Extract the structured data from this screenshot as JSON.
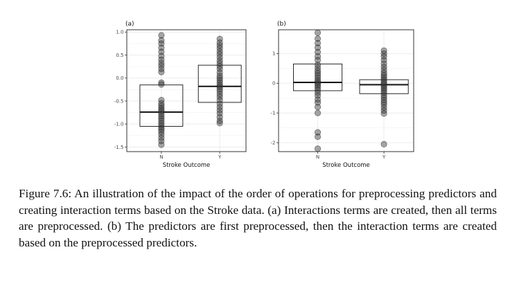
{
  "chart_data": [
    {
      "type": "box",
      "panel_label": "(a)",
      "xlabel": "Stroke Outcome",
      "ylabel": "",
      "categories": [
        "N",
        "Y"
      ],
      "ylim": [
        -1.6,
        1.05
      ],
      "yticks": [
        1.0,
        0.5,
        0.0,
        -0.5,
        -1.0,
        -1.5
      ],
      "ytick_labels": [
        "1.0",
        "0.5",
        "0.0",
        "-0.5",
        "-1.0",
        "-1.5"
      ],
      "grid": true,
      "boxes": [
        {
          "category": "N",
          "q1": -1.05,
          "median": -0.74,
          "q3": -0.15
        },
        {
          "category": "Y",
          "q1": -0.53,
          "median": -0.18,
          "q3": 0.28
        }
      ],
      "points": {
        "N": [
          0.93,
          0.82,
          0.75,
          0.66,
          0.57,
          0.48,
          0.4,
          0.33,
          0.27,
          0.2,
          0.13,
          -0.1,
          -0.14,
          -0.48,
          -0.55,
          -0.6,
          -0.65,
          -0.69,
          -0.73,
          -0.78,
          -0.83,
          -0.88,
          -0.93,
          -0.98,
          -1.03,
          -1.08,
          -1.12,
          -1.17,
          -1.23,
          -1.3,
          -1.37,
          -1.45
        ],
        "Y": [
          0.85,
          0.77,
          0.71,
          0.65,
          0.58,
          0.52,
          0.45,
          0.38,
          0.32,
          0.26,
          0.2,
          0.12,
          0.05,
          0.0,
          -0.05,
          -0.1,
          -0.15,
          -0.19,
          -0.24,
          -0.29,
          -0.35,
          -0.41,
          -0.48,
          -0.56,
          -0.63,
          -0.7,
          -0.77,
          -0.85,
          -0.93,
          -0.98
        ]
      }
    },
    {
      "type": "box",
      "panel_label": "(b)",
      "xlabel": "Stroke Outcome",
      "ylabel": "",
      "categories": [
        "N",
        "Y"
      ],
      "ylim": [
        -2.3,
        1.8
      ],
      "yticks": [
        1,
        0,
        -1,
        -2
      ],
      "ytick_labels": [
        "1",
        "0",
        "-1",
        "-2"
      ],
      "grid": true,
      "boxes": [
        {
          "category": "N",
          "q1": -0.25,
          "median": 0.03,
          "q3": 0.65
        },
        {
          "category": "Y",
          "q1": -0.35,
          "median": -0.05,
          "q3": 0.12
        }
      ],
      "points": {
        "N": [
          1.7,
          1.5,
          1.35,
          1.2,
          1.05,
          0.9,
          0.78,
          0.62,
          0.52,
          0.42,
          0.34,
          0.26,
          0.18,
          0.1,
          0.04,
          -0.02,
          -0.08,
          -0.15,
          -0.23,
          -0.32,
          -0.42,
          -0.55,
          -0.65,
          -0.8,
          -1.0,
          -1.65,
          -1.8,
          -2.2
        ],
        "Y": [
          1.1,
          1.0,
          0.9,
          0.78,
          0.66,
          0.55,
          0.45,
          0.35,
          0.27,
          0.2,
          0.13,
          0.06,
          0.0,
          -0.06,
          -0.12,
          -0.18,
          -0.25,
          -0.32,
          -0.4,
          -0.48,
          -0.56,
          -0.64,
          -0.72,
          -0.82,
          -0.92,
          -1.02,
          -2.05
        ]
      }
    }
  ],
  "caption": {
    "text": "Figure 7.6: An illustration of the impact of the order of operations for preprocessing predictors and creating interaction terms based on the Stroke data. (a) Interactions terms are created, then all terms are preprocessed. (b) The predictors are first preprocessed, then the interaction terms are created based on the preprocessed predictors."
  },
  "colors": {
    "point_fill": "#3a3a3a",
    "point_stroke": "#1a1a1a",
    "grid": "#ebebeb",
    "panel_border": "#333333",
    "box_line": "#111111"
  }
}
